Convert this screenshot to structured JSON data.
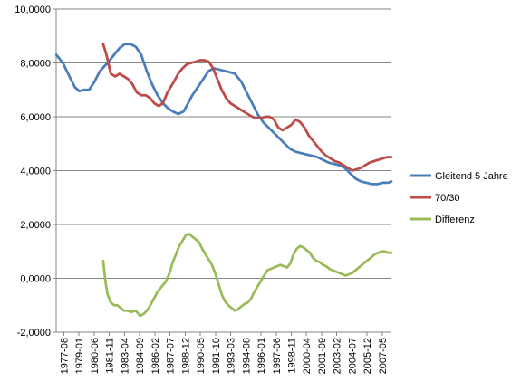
{
  "chart_data": {
    "type": "line",
    "title": "",
    "xlabel": "",
    "ylabel": "",
    "ylim": [
      -2,
      10
    ],
    "y_tick_labels": [
      "-2,0000",
      "0,0000",
      "2,0000",
      "4,0000",
      "6,0000",
      "8,0000",
      "10,0000"
    ],
    "x_tick_labels": [
      "1977-08",
      "1979-01",
      "1980-06",
      "1981-11",
      "1983-04",
      "1984-09",
      "1986-02",
      "1987-07",
      "1988-12",
      "1990-05",
      "1991-10",
      "1993-03",
      "1994-08",
      "1996-01",
      "1997-06",
      "1998-11",
      "2000-04",
      "2001-09",
      "2003-02",
      "2004-07",
      "2005-12",
      "2007-05"
    ],
    "x_range": [
      1977.58,
      2008.4
    ],
    "grid": "horizontal",
    "legend_position": "right",
    "series": [
      {
        "name": "Gleitend 5 Jahre",
        "color": "#4A7EBB",
        "x": [
          1977.6,
          1978.2,
          1978.8,
          1979.3,
          1979.7,
          1980.1,
          1980.6,
          1981.1,
          1981.6,
          1982.3,
          1982.9,
          1983.4,
          1983.9,
          1984.4,
          1984.9,
          1985.4,
          1985.9,
          1986.4,
          1986.9,
          1987.4,
          1987.9,
          1988.3,
          1988.8,
          1989.3,
          1989.7,
          1990.1,
          1990.6,
          1991.1,
          1991.6,
          1992.1,
          1992.6,
          1993.1,
          1993.6,
          1994.0,
          1994.6,
          1995.1,
          1995.6,
          1996.1,
          1996.6,
          1997.1,
          1997.6,
          1998.1,
          1998.6,
          1999.1,
          1999.6,
          2000.1,
          2000.6,
          2001.1,
          2001.6,
          2002.1,
          2002.6,
          2003.1,
          2003.6,
          2004.1,
          2004.6,
          2005.1,
          2005.6,
          2006.1,
          2006.6,
          2007.1,
          2007.6,
          2008.1,
          2008.4
        ],
        "y": [
          8.3,
          8.0,
          7.5,
          7.1,
          6.95,
          7.0,
          7.0,
          7.3,
          7.7,
          8.0,
          8.3,
          8.55,
          8.7,
          8.7,
          8.6,
          8.3,
          7.7,
          7.2,
          6.8,
          6.5,
          6.3,
          6.2,
          6.1,
          6.2,
          6.5,
          6.8,
          7.1,
          7.4,
          7.7,
          7.8,
          7.75,
          7.7,
          7.65,
          7.6,
          7.3,
          6.9,
          6.5,
          6.1,
          5.8,
          5.6,
          5.4,
          5.2,
          5.0,
          4.8,
          4.7,
          4.65,
          4.6,
          4.55,
          4.5,
          4.4,
          4.3,
          4.25,
          4.2,
          4.1,
          3.9,
          3.7,
          3.6,
          3.55,
          3.5,
          3.5,
          3.55,
          3.55,
          3.6
        ]
      },
      {
        "name": "70/30",
        "color": "#BE4B48",
        "x": [
          1981.9,
          1982.2,
          1982.6,
          1983.0,
          1983.4,
          1983.8,
          1984.2,
          1984.6,
          1985.0,
          1985.4,
          1985.8,
          1986.2,
          1986.6,
          1987.0,
          1987.4,
          1987.8,
          1988.1,
          1988.4,
          1988.8,
          1989.2,
          1989.6,
          1990.0,
          1990.4,
          1990.8,
          1991.2,
          1991.6,
          1992.0,
          1992.4,
          1992.8,
          1993.2,
          1993.6,
          1994.0,
          1994.4,
          1994.8,
          1995.2,
          1995.6,
          1996.0,
          1996.4,
          1996.8,
          1997.2,
          1997.6,
          1998.0,
          1998.4,
          1998.8,
          1999.2,
          1999.6,
          2000.0,
          2000.4,
          2000.8,
          2001.2,
          2001.6,
          2002.0,
          2002.4,
          2002.8,
          2003.2,
          2003.6,
          2004.0,
          2004.4,
          2004.8,
          2005.2,
          2005.6,
          2006.0,
          2006.4,
          2006.8,
          2007.2,
          2007.6,
          2008.0,
          2008.4
        ],
        "y": [
          8.7,
          8.3,
          7.6,
          7.5,
          7.6,
          7.5,
          7.4,
          7.2,
          6.9,
          6.8,
          6.8,
          6.7,
          6.5,
          6.4,
          6.5,
          6.9,
          7.1,
          7.3,
          7.6,
          7.8,
          7.95,
          8.0,
          8.05,
          8.1,
          8.1,
          8.05,
          7.8,
          7.4,
          7.0,
          6.7,
          6.5,
          6.4,
          6.3,
          6.2,
          6.1,
          6.0,
          5.95,
          5.95,
          6.0,
          6.0,
          5.9,
          5.6,
          5.5,
          5.6,
          5.7,
          5.9,
          5.8,
          5.6,
          5.3,
          5.1,
          4.9,
          4.7,
          4.55,
          4.45,
          4.35,
          4.3,
          4.2,
          4.1,
          4.0,
          4.05,
          4.1,
          4.2,
          4.3,
          4.35,
          4.4,
          4.45,
          4.5,
          4.5
        ]
      },
      {
        "name": "Differenz",
        "color": "#9BBB59",
        "x": [
          1981.9,
          1982.1,
          1982.3,
          1982.6,
          1982.9,
          1983.2,
          1983.5,
          1983.8,
          1984.1,
          1984.5,
          1984.9,
          1985.3,
          1985.7,
          1986.1,
          1986.5,
          1986.9,
          1987.3,
          1987.7,
          1988.0,
          1988.3,
          1988.6,
          1988.9,
          1989.2,
          1989.5,
          1989.8,
          1990.1,
          1990.4,
          1990.7,
          1991.0,
          1991.3,
          1991.6,
          1991.9,
          1992.2,
          1992.5,
          1992.8,
          1993.1,
          1993.4,
          1993.7,
          1994.0,
          1994.3,
          1994.6,
          1994.9,
          1995.2,
          1995.5,
          1995.8,
          1996.1,
          1996.4,
          1996.7,
          1997.0,
          1997.3,
          1997.6,
          1997.9,
          1998.2,
          1998.5,
          1998.8,
          1999.1,
          1999.4,
          1999.7,
          2000.0,
          2000.3,
          2000.6,
          2000.9,
          2001.2,
          2001.5,
          2001.8,
          2002.1,
          2002.4,
          2002.7,
          2003.0,
          2003.3,
          2003.6,
          2003.9,
          2004.2,
          2004.5,
          2004.8,
          2005.1,
          2005.4,
          2005.7,
          2006.0,
          2006.3,
          2006.6,
          2006.9,
          2007.2,
          2007.5,
          2007.8,
          2008.1,
          2008.4
        ],
        "y": [
          0.65,
          -0.1,
          -0.6,
          -0.9,
          -1.0,
          -1.0,
          -1.1,
          -1.2,
          -1.2,
          -1.25,
          -1.2,
          -1.4,
          -1.3,
          -1.1,
          -0.8,
          -0.5,
          -0.3,
          -0.1,
          0.2,
          0.6,
          0.9,
          1.2,
          1.4,
          1.6,
          1.65,
          1.55,
          1.45,
          1.35,
          1.1,
          0.9,
          0.7,
          0.5,
          0.2,
          -0.2,
          -0.6,
          -0.85,
          -1.0,
          -1.1,
          -1.2,
          -1.15,
          -1.05,
          -0.95,
          -0.9,
          -0.75,
          -0.5,
          -0.3,
          -0.1,
          0.1,
          0.3,
          0.35,
          0.4,
          0.45,
          0.5,
          0.45,
          0.4,
          0.55,
          0.9,
          1.1,
          1.2,
          1.15,
          1.05,
          0.95,
          0.75,
          0.65,
          0.6,
          0.5,
          0.45,
          0.35,
          0.3,
          0.25,
          0.2,
          0.15,
          0.1,
          0.15,
          0.2,
          0.3,
          0.4,
          0.5,
          0.6,
          0.7,
          0.8,
          0.9,
          0.95,
          1.0,
          1.0,
          0.95,
          0.95
        ]
      }
    ]
  }
}
